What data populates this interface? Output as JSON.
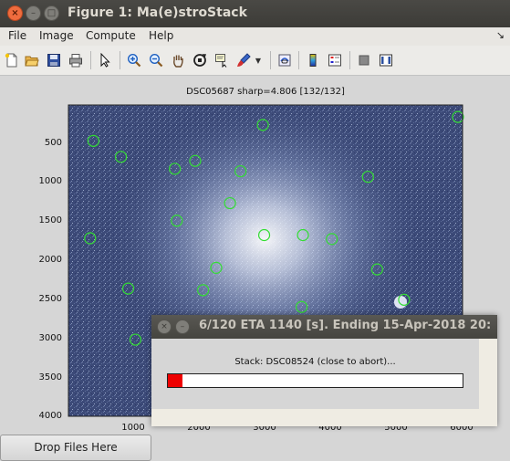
{
  "window": {
    "title": "Figure 1: Ma(e)stroStack",
    "close_glyph": "×",
    "min_glyph": "–",
    "max_glyph": "□"
  },
  "menubar": {
    "items": [
      "File",
      "Image",
      "Compute",
      "Help"
    ],
    "end_arrow": "↘"
  },
  "toolbar": {
    "icons": [
      "new-file-icon",
      "open-folder-icon",
      "save-icon",
      "print-icon",
      "pointer-icon",
      "zoom-in-icon",
      "zoom-out-icon",
      "pan-hand-icon",
      "rotate-3d-icon",
      "data-cursor-icon",
      "brush-icon",
      "brush-dropdown-icon",
      "link-plot-icon",
      "colorbar-icon",
      "legend-icon",
      "hide-plot-tools-icon",
      "show-plot-tools-icon"
    ]
  },
  "plot": {
    "title": "DSC05687  sharp=4.806 [132/132]",
    "y_ticks": [
      "500",
      "1000",
      "1500",
      "2000",
      "2500",
      "3000",
      "3500",
      "4000"
    ],
    "x_ticks": [
      "1000",
      "2000",
      "3000",
      "4000",
      "5000",
      "6000"
    ],
    "colors": {
      "background": "#3c4a78",
      "glow": "#e3e8f5",
      "star_marker": "#33dd33"
    }
  },
  "chart_data": {
    "type": "scatter",
    "title": "DSC05687  sharp=4.806 [132/132]",
    "xlabel": "",
    "ylabel": "",
    "xlim": [
      0,
      6000
    ],
    "ylim": [
      4000,
      100
    ],
    "x_ticks": [
      1000,
      2000,
      3000,
      4000,
      5000,
      6000
    ],
    "y_ticks": [
      500,
      1000,
      1500,
      2000,
      2500,
      3000,
      3500,
      4000
    ],
    "series": [
      {
        "points": [
          {
            "x": 380,
            "y": 550
          },
          {
            "x": 800,
            "y": 750
          },
          {
            "x": 1620,
            "y": 900
          },
          {
            "x": 1930,
            "y": 800
          },
          {
            "x": 2620,
            "y": 930
          },
          {
            "x": 2960,
            "y": 350
          },
          {
            "x": 5930,
            "y": 250
          },
          {
            "x": 4560,
            "y": 1000
          },
          {
            "x": 2460,
            "y": 1330
          },
          {
            "x": 1650,
            "y": 1550
          },
          {
            "x": 330,
            "y": 1770
          },
          {
            "x": 2980,
            "y": 1730
          },
          {
            "x": 3570,
            "y": 1730
          },
          {
            "x": 4010,
            "y": 1780
          },
          {
            "x": 4700,
            "y": 2160
          },
          {
            "x": 2250,
            "y": 2140
          },
          {
            "x": 2050,
            "y": 2420
          },
          {
            "x": 910,
            "y": 2400
          },
          {
            "x": 5110,
            "y": 2540
          },
          {
            "x": 3550,
            "y": 2630
          },
          {
            "x": 1020,
            "y": 3040
          }
        ]
      }
    ]
  },
  "drop_button": {
    "label": "Drop Files Here"
  },
  "dialog": {
    "title": "6/120 ETA 1140 [s]. Ending 15-Apr-2018 20:",
    "message": "Stack: DSC08524 (close to abort)...",
    "progress_fraction": 0.05,
    "colors": {
      "progress": "#ee0000"
    }
  }
}
